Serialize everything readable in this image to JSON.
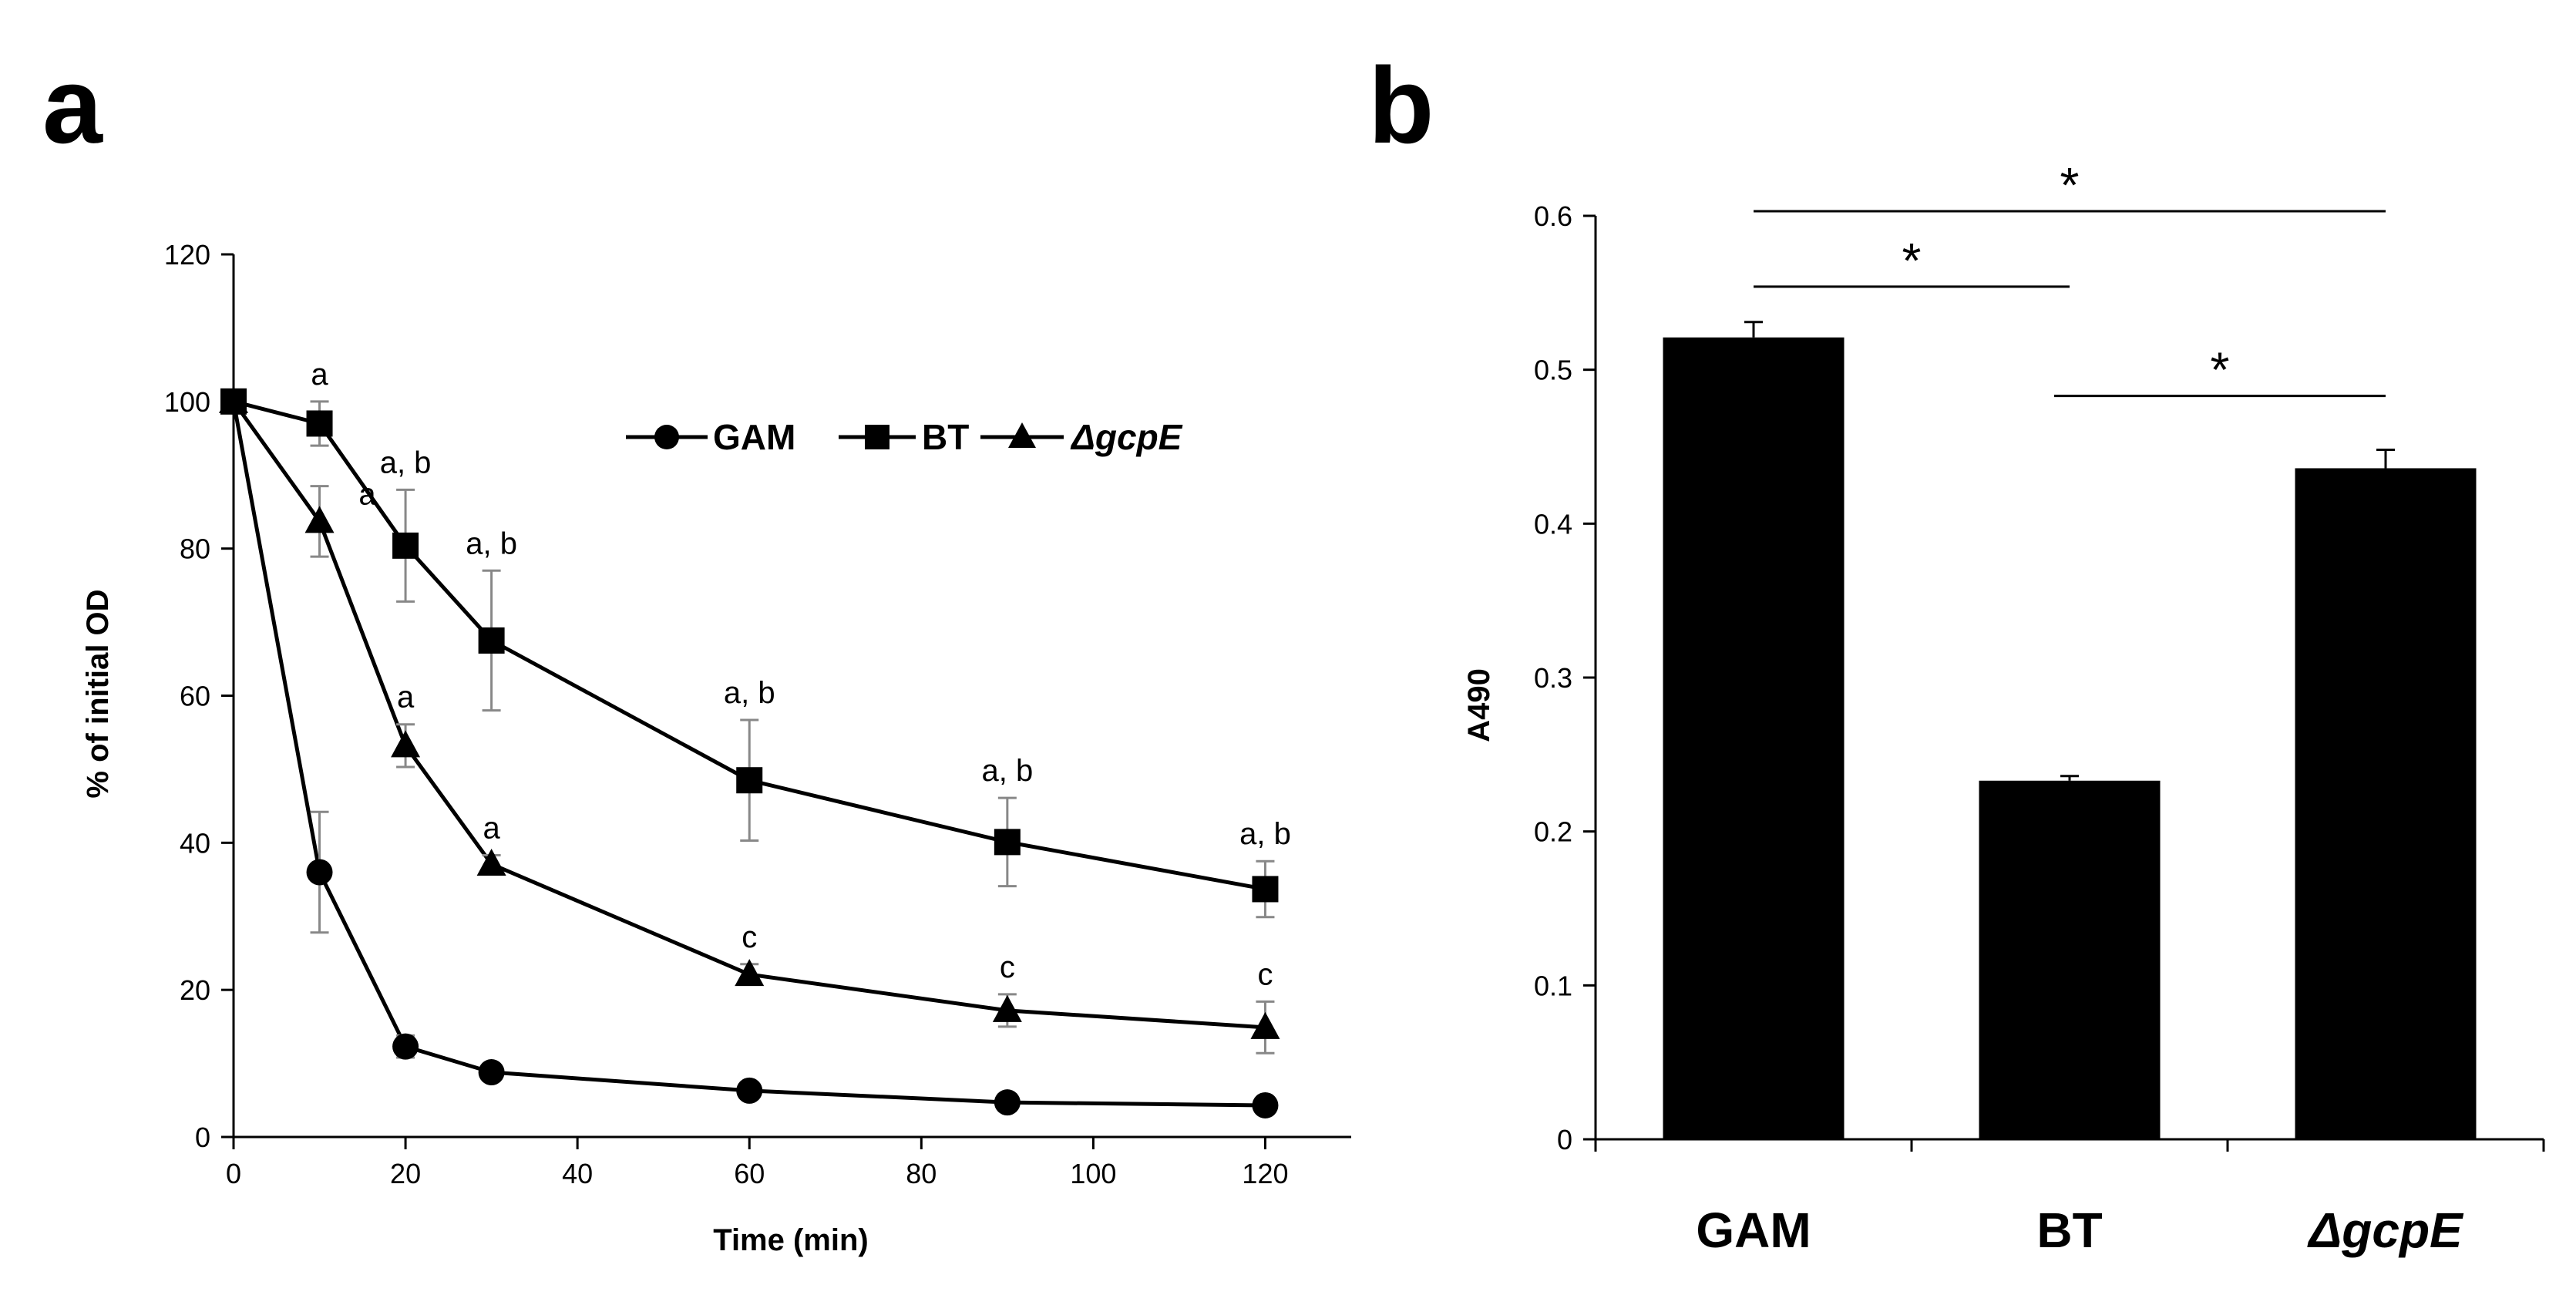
{
  "panels": {
    "a_label": "a",
    "b_label": "b"
  },
  "chart_data": [
    {
      "type": "line",
      "panel": "a",
      "title": "",
      "xlabel": "Time (min)",
      "ylabel": "% of initial OD",
      "xlim": [
        0,
        130
      ],
      "ylim": [
        0,
        120
      ],
      "xticks": [
        0,
        20,
        40,
        60,
        80,
        100,
        120
      ],
      "yticks": [
        0,
        20,
        40,
        60,
        80,
        100,
        120
      ],
      "x": [
        0,
        10,
        20,
        30,
        60,
        90,
        120
      ],
      "legend_position": "top-right",
      "series": [
        {
          "name": "GAM",
          "marker": "circle",
          "values": [
            100,
            36,
            12.3,
            8.8,
            6.3,
            4.7,
            4.3
          ],
          "errors": [
            0,
            8.2,
            1.5,
            0.8,
            0.8,
            0.8,
            0.8
          ],
          "annotations": [
            "",
            "",
            "",
            "",
            "",
            "",
            ""
          ]
        },
        {
          "name": "BT",
          "marker": "square",
          "values": [
            100,
            97,
            80.4,
            67.5,
            48.5,
            40.1,
            33.7
          ],
          "errors": [
            0,
            3,
            7.6,
            9.5,
            8.2,
            6,
            3.8
          ],
          "annotations": [
            "",
            "a",
            "a, b",
            "a, b",
            "a, b",
            "a, b",
            "a, b"
          ]
        },
        {
          "name": "ΔgcpE",
          "marker": "triangle",
          "values": [
            100,
            83.7,
            53.2,
            37.1,
            22.1,
            17.2,
            14.9
          ],
          "errors": [
            0,
            4.8,
            2.9,
            1.2,
            1.4,
            2.2,
            3.5
          ],
          "annotations": [
            "",
            "a",
            "a",
            "a",
            "c",
            "c",
            "c"
          ]
        }
      ]
    },
    {
      "type": "bar",
      "panel": "b",
      "title": "",
      "xlabel": "",
      "ylabel": "A490",
      "ylim": [
        0,
        0.6
      ],
      "yticks": [
        0,
        0.1,
        0.2,
        0.3,
        0.4,
        0.5,
        0.6
      ],
      "ytick_labels": [
        "0",
        "0.1",
        "0.2",
        "0.3",
        "0.4",
        "0.5",
        "0.6"
      ],
      "categories": [
        "GAM",
        "BT",
        "ΔgcpE"
      ],
      "values": [
        0.521,
        0.233,
        0.436
      ],
      "errors": [
        0.01,
        0.003,
        0.012
      ],
      "significance": [
        {
          "from": 0,
          "to": 2,
          "label": "*",
          "level": 0.603
        },
        {
          "from": 0,
          "to": 1,
          "label": "*",
          "level": 0.554
        },
        {
          "from": 1,
          "to": 2,
          "label": "*",
          "level": 0.483
        }
      ]
    }
  ]
}
